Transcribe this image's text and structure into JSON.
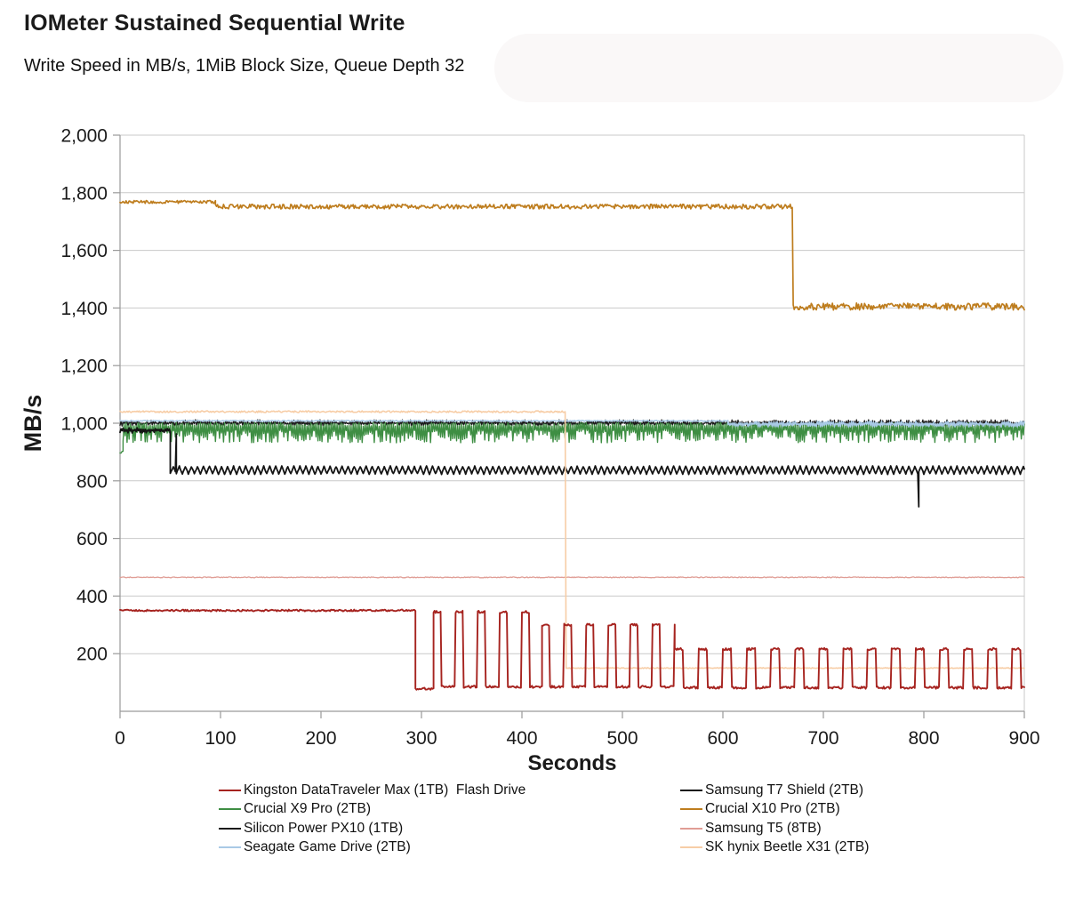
{
  "header": {
    "title": "IOMeter Sustained Sequential Write",
    "subtitle": "Write Speed in MB/s, 1MiB Block Size, Queue Depth 32"
  },
  "chart_data": {
    "type": "line",
    "title": "IOMeter Sustained Sequential Write",
    "subtitle": "Write Speed in MB/s, 1MiB Block Size, Queue Depth 32",
    "xlabel": "Seconds",
    "ylabel": "MB/s",
    "axes": {
      "x": {
        "min": 0,
        "max": 900,
        "step": 100,
        "label": "Seconds"
      },
      "y": {
        "min": 0,
        "max": 2000,
        "step": 200,
        "label": "MB/s",
        "tick_format": "thousands-comma"
      }
    },
    "grid": {
      "horizontal": true,
      "vertical": false,
      "color": "#c9c9c9"
    },
    "axis_color": "#9a9a9a",
    "series": [
      {
        "name": "Silicon Power PX10 (1TB)",
        "color": "#1a1a1a",
        "lw": 1.3,
        "profile": [
          {
            "t0": 0,
            "t1": 900,
            "mode": "band",
            "v": 1000,
            "amp": 12
          }
        ]
      },
      {
        "name": "Crucial X9 Pro (2TB)",
        "color": "#3e8e43",
        "lw": 1.4,
        "profile": [
          {
            "t0": 0,
            "t1": 3,
            "mode": "flat",
            "v": 905,
            "amp": 12
          },
          {
            "t0": 3,
            "t1": 900,
            "mode": "grass",
            "v": 1002,
            "amp": 70
          }
        ]
      },
      {
        "name": "Seagate Game Drive (2TB)",
        "color": "#a9cae6",
        "lw": 1.6,
        "profile": [
          {
            "t0": 0,
            "t1": 605,
            "mode": "flat",
            "v": 1008,
            "amp": 2
          },
          {
            "t0": 605,
            "t1": 900,
            "mode": "band",
            "v": 997,
            "amp": 10
          }
        ]
      },
      {
        "name": "Samsung T7 Shield (2TB)",
        "color": "#141414",
        "lw": 1.8,
        "profile": [
          {
            "t0": 0,
            "t1": 50,
            "mode": "band",
            "v": 975,
            "amp": 9
          },
          {
            "t0": 50,
            "t1": 900,
            "mode": "zigzag",
            "v": 837,
            "amp": 13,
            "period": 6
          }
        ],
        "dips": [
          {
            "t": 56,
            "v": 963
          },
          {
            "t": 795,
            "v": 710
          }
        ]
      },
      {
        "name": "Crucial X10 Pro (2TB)",
        "color": "#be7d1e",
        "lw": 1.7,
        "profile": [
          {
            "t0": 0,
            "t1": 95,
            "mode": "flat",
            "v": 1768,
            "amp": 5
          },
          {
            "t0": 95,
            "t1": 669,
            "mode": "flat",
            "v": 1752,
            "amp": 8
          },
          {
            "t0": 670,
            "t1": 900,
            "mode": "flat",
            "v": 1405,
            "amp": 12
          }
        ]
      },
      {
        "name": "Samsung T5 (8TB)",
        "color": "#e09d95",
        "lw": 1.3,
        "profile": [
          {
            "t0": 0,
            "t1": 900,
            "mode": "flat",
            "v": 465,
            "amp": 1.5
          }
        ]
      },
      {
        "name": "SK hynix Beetle X31 (2TB)",
        "color": "#f7cda6",
        "lw": 1.6,
        "profile": [
          {
            "t0": 0,
            "t1": 443,
            "mode": "flat",
            "v": 1040,
            "amp": 3
          },
          {
            "t0": 444,
            "t1": 900,
            "mode": "flat",
            "v": 150,
            "amp": 1.5
          }
        ]
      },
      {
        "name": "Kingston DataTraveler Max (1TB)  Flash Drive",
        "color": "#a6231f",
        "lw": 1.9,
        "profile": [
          {
            "t0": 0,
            "t1": 294,
            "mode": "flat",
            "v": 350,
            "amp": 3
          },
          {
            "t0": 294,
            "t1": 312,
            "mode": "flat",
            "v": 78,
            "amp": 4
          },
          {
            "t0": 312,
            "t1": 420,
            "mode": "pulses",
            "base": 85,
            "high": 345,
            "period": 22,
            "width": 8,
            "amp": 4
          },
          {
            "t0": 420,
            "t1": 552,
            "mode": "pulses",
            "base": 85,
            "high": 300,
            "period": 22,
            "width": 8,
            "amp": 4
          },
          {
            "t0": 552,
            "t1": 900,
            "mode": "pulses",
            "base": 82,
            "high": 216,
            "period": 24,
            "width": 9,
            "amp": 4
          }
        ]
      }
    ],
    "legend": {
      "position": "bottom-center",
      "columns": 2,
      "entries": [
        "Kingston DataTraveler Max (1TB)  Flash Drive",
        "Samsung T7 Shield (2TB)",
        "Crucial X9 Pro (2TB)",
        "Crucial X10 Pro (2TB)",
        "Silicon Power PX10 (1TB)",
        "Samsung T5 (8TB)",
        "Seagate Game Drive (2TB)",
        "SK hynix Beetle X31 (2TB)"
      ]
    }
  }
}
